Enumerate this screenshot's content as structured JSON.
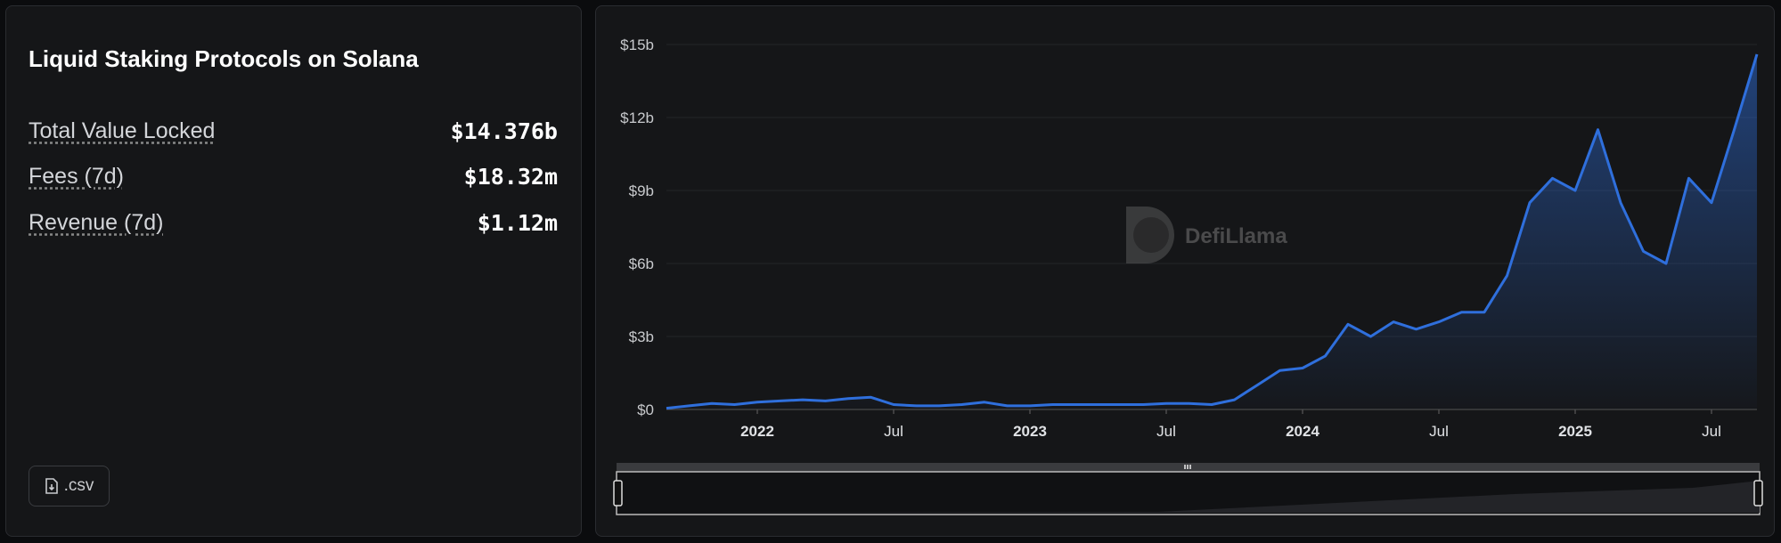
{
  "header": {
    "title": "Liquid Staking Protocols on Solana"
  },
  "metrics": [
    {
      "label": "Total Value Locked",
      "value": "$14.376b"
    },
    {
      "label": "Fees (7d)",
      "value": "$18.32m"
    },
    {
      "label": "Revenue (7d)",
      "value": "$1.12m"
    }
  ],
  "csv_button": ".csv",
  "chart_data": {
    "type": "area",
    "watermark": "DefiLlama",
    "color": "#2f6fdc",
    "grid": true,
    "x": [
      "2021-09",
      "2021-10",
      "2021-11",
      "2021-12",
      "2022-01",
      "2022-02",
      "2022-03",
      "2022-04",
      "2022-05",
      "2022-06",
      "2022-07",
      "2022-08",
      "2022-09",
      "2022-10",
      "2022-11",
      "2022-12",
      "2023-01",
      "2023-02",
      "2023-03",
      "2023-04",
      "2023-05",
      "2023-06",
      "2023-07",
      "2023-08",
      "2023-09",
      "2023-10",
      "2023-11",
      "2023-12",
      "2024-01",
      "2024-02",
      "2024-03",
      "2024-04",
      "2024-05",
      "2024-06",
      "2024-07",
      "2024-08",
      "2024-09",
      "2024-10",
      "2024-11",
      "2024-12",
      "2025-01",
      "2025-02",
      "2025-03",
      "2025-04",
      "2025-05",
      "2025-06",
      "2025-07",
      "2025-08",
      "2025-09"
    ],
    "values": [
      0.05,
      0.15,
      0.25,
      0.2,
      0.3,
      0.35,
      0.4,
      0.35,
      0.45,
      0.5,
      0.2,
      0.15,
      0.15,
      0.2,
      0.3,
      0.15,
      0.15,
      0.2,
      0.2,
      0.2,
      0.2,
      0.2,
      0.25,
      0.25,
      0.2,
      0.4,
      1.0,
      1.6,
      1.7,
      2.2,
      3.5,
      3.0,
      3.6,
      3.3,
      3.6,
      4.0,
      4.0,
      5.5,
      8.5,
      9.5,
      9.0,
      11.5,
      8.5,
      6.5,
      6.0,
      9.5,
      8.5,
      11.5,
      14.6
    ],
    "xlim": [
      "2021-09",
      "2025-09"
    ],
    "xticks": [
      {
        "value": "2022-01",
        "label": "2022"
      },
      {
        "value": "2022-07",
        "label": "Jul"
      },
      {
        "value": "2023-01",
        "label": "2023"
      },
      {
        "value": "2023-07",
        "label": "Jul"
      },
      {
        "value": "2024-01",
        "label": "2024"
      },
      {
        "value": "2024-07",
        "label": "Jul"
      },
      {
        "value": "2025-01",
        "label": "2025"
      },
      {
        "value": "2025-07",
        "label": "Jul"
      }
    ],
    "ylim": [
      0,
      15
    ],
    "yticks": [
      {
        "value": 0,
        "label": "$0"
      },
      {
        "value": 3,
        "label": "$3b"
      },
      {
        "value": 6,
        "label": "$6b"
      },
      {
        "value": 9,
        "label": "$9b"
      },
      {
        "value": 12,
        "label": "$12b"
      },
      {
        "value": 15,
        "label": "$15b"
      }
    ]
  }
}
